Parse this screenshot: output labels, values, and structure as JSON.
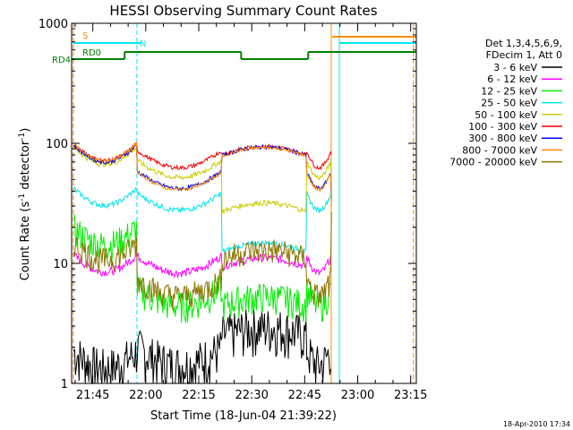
{
  "chart_data": {
    "type": "line",
    "title": "HESSI Observing Summary Count Rates",
    "ylabel_main": "Count Rate (s",
    "ylabel_sup1": "-1",
    "ylabel_mid": " detector",
    "ylabel_sup2": "-1",
    "ylabel_end": ")",
    "xlabel": "Start Time (18-Jun-04 21:39:22)",
    "date_stamp": "18-Apr-2010 17:34",
    "y_scale": "log",
    "ylim": [
      1,
      1000
    ],
    "xlim": [
      "21:39:22",
      "23:17:00"
    ],
    "y_ticks": [
      {
        "value": 1,
        "label": "1"
      },
      {
        "value": 10,
        "label": "10"
      },
      {
        "value": 100,
        "label": "100"
      },
      {
        "value": 1000,
        "label": "1000"
      }
    ],
    "x_ticks": [
      {
        "minutes": 6.0,
        "label": "21:45"
      },
      {
        "minutes": 21.0,
        "label": "22:00"
      },
      {
        "minutes": 36.0,
        "label": "22:15"
      },
      {
        "minutes": 51.0,
        "label": "22:30"
      },
      {
        "minutes": 66.0,
        "label": "22:45"
      },
      {
        "minutes": 81.0,
        "label": "23:00"
      },
      {
        "minutes": 96.0,
        "label": "23:15"
      }
    ],
    "legend_header": [
      "Det 1,3,4,5,6,9,",
      "FDecim 1, Att 0"
    ],
    "legend_position": "right",
    "series": [
      {
        "name": "3 - 6 keV",
        "color": "#000000"
      },
      {
        "name": "6 - 12 keV",
        "color": "#ff00ff"
      },
      {
        "name": "12 - 25 keV",
        "color": "#00ee00"
      },
      {
        "name": "25 - 50 keV",
        "color": "#00e5ee"
      },
      {
        "name": "50 - 100 keV",
        "color": "#cccc00"
      },
      {
        "name": "100 - 300 keV",
        "color": "#ee0000"
      },
      {
        "name": "300 - 800 keV",
        "color": "#0000ee"
      },
      {
        "name": "800 - 7000 keV",
        "color": "#ff8c00"
      },
      {
        "name": "7000 - 20000 keV",
        "color": "#8b7500"
      }
    ],
    "segments": [
      {
        "start": 0.5,
        "end": 18.5,
        "levels": [
          1.5,
          9.5,
          16,
          34,
          75,
          80,
          78,
          80,
          12
        ]
      },
      {
        "start": 18.5,
        "end": 42.5,
        "levels": [
          1.6,
          9.3,
          5,
          31,
          58,
          70,
          47,
          46,
          6
        ]
      },
      {
        "start": 42.5,
        "end": 66.5,
        "levels": [
          2.5,
          9.4,
          4.5,
          12.5,
          27,
          80,
          79,
          78,
          11
        ]
      },
      {
        "start": 66.5,
        "end": 73.5,
        "levels": [
          1.6,
          9.3,
          5,
          31,
          58,
          70,
          47,
          46,
          6
        ]
      }
    ],
    "annotations": {
      "saa_label": "S",
      "night_label": "N",
      "rd_label": "RD4",
      "rd0_label": "RD0"
    },
    "colors": {
      "saa": "#ff8c00",
      "night": "#00e5ee",
      "decim": "#008000",
      "axis": "#000000"
    }
  }
}
